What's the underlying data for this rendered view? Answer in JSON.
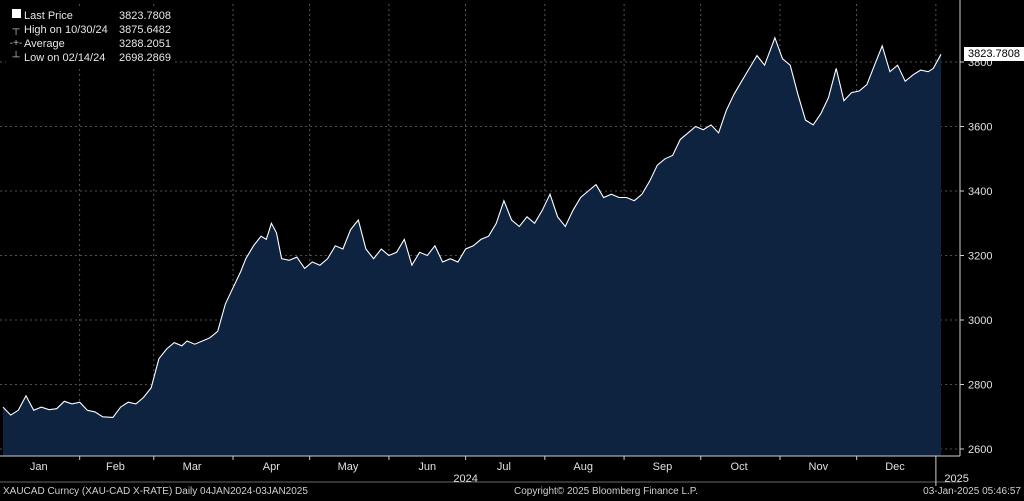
{
  "chart_data": {
    "type": "area",
    "title": "",
    "ylabel": "",
    "ylim": [
      2600,
      4000
    ],
    "yticks": [
      2600,
      2800,
      3000,
      3200,
      3400,
      3600,
      3800
    ],
    "x_range": [
      "2024-01-02",
      "2025-01-03"
    ],
    "month_labels": [
      {
        "label": "Jan",
        "date": "2024-01-16"
      },
      {
        "label": "Feb",
        "date": "2024-02-15"
      },
      {
        "label": "Mar",
        "date": "2024-03-16"
      },
      {
        "label": "Apr",
        "date": "2024-04-16"
      },
      {
        "label": "May",
        "date": "2024-05-16"
      },
      {
        "label": "Jun",
        "date": "2024-06-16"
      },
      {
        "label": "Jul",
        "date": "2024-07-16"
      },
      {
        "label": "Aug",
        "date": "2024-08-16"
      },
      {
        "label": "Sep",
        "date": "2024-09-16"
      },
      {
        "label": "Oct",
        "date": "2024-10-16"
      },
      {
        "label": "Nov",
        "date": "2024-11-16"
      },
      {
        "label": "Dec",
        "date": "2024-12-16"
      }
    ],
    "year_label": {
      "label": "2024",
      "date": "2024-07-01"
    },
    "next_year_label": {
      "label": "2025",
      "date": "2025-01-06"
    },
    "gridlines": [
      "2024-02-01",
      "2024-03-01",
      "2024-04-01",
      "2024-05-01",
      "2024-06-01",
      "2024-07-01",
      "2024-08-01",
      "2024-09-01",
      "2024-10-01",
      "2024-11-01",
      "2024-12-01",
      "2025-01-01"
    ],
    "grid": true,
    "colors": {
      "fill": "#0d2340",
      "line": "#ffffff",
      "grid": "#6a6a6a",
      "background": "#000000"
    },
    "last_price_tag": "3823.7808",
    "series": [
      {
        "name": "Last Price",
        "points": [
          [
            "2024-01-02",
            2730
          ],
          [
            "2024-01-05",
            2705
          ],
          [
            "2024-01-08",
            2720
          ],
          [
            "2024-01-11",
            2765
          ],
          [
            "2024-01-14",
            2720
          ],
          [
            "2024-01-17",
            2730
          ],
          [
            "2024-01-20",
            2722
          ],
          [
            "2024-01-23",
            2725
          ],
          [
            "2024-01-26",
            2748
          ],
          [
            "2024-01-29",
            2740
          ],
          [
            "2024-02-01",
            2745
          ],
          [
            "2024-02-04",
            2720
          ],
          [
            "2024-02-07",
            2715
          ],
          [
            "2024-02-10",
            2700
          ],
          [
            "2024-02-14",
            2698
          ],
          [
            "2024-02-17",
            2730
          ],
          [
            "2024-02-20",
            2745
          ],
          [
            "2024-02-23",
            2740
          ],
          [
            "2024-02-26",
            2760
          ],
          [
            "2024-02-29",
            2790
          ],
          [
            "2024-03-03",
            2880
          ],
          [
            "2024-03-06",
            2910
          ],
          [
            "2024-03-09",
            2930
          ],
          [
            "2024-03-12",
            2920
          ],
          [
            "2024-03-14",
            2935
          ],
          [
            "2024-03-17",
            2925
          ],
          [
            "2024-03-20",
            2935
          ],
          [
            "2024-03-23",
            2945
          ],
          [
            "2024-03-26",
            2965
          ],
          [
            "2024-03-29",
            3050
          ],
          [
            "2024-04-01",
            3100
          ],
          [
            "2024-04-04",
            3150
          ],
          [
            "2024-04-06",
            3190
          ],
          [
            "2024-04-09",
            3230
          ],
          [
            "2024-04-12",
            3260
          ],
          [
            "2024-04-14",
            3250
          ],
          [
            "2024-04-16",
            3300
          ],
          [
            "2024-04-18",
            3270
          ],
          [
            "2024-04-20",
            3190
          ],
          [
            "2024-04-23",
            3185
          ],
          [
            "2024-04-26",
            3195
          ],
          [
            "2024-04-29",
            3160
          ],
          [
            "2024-05-02",
            3180
          ],
          [
            "2024-05-05",
            3170
          ],
          [
            "2024-05-08",
            3190
          ],
          [
            "2024-05-11",
            3230
          ],
          [
            "2024-05-14",
            3220
          ],
          [
            "2024-05-17",
            3280
          ],
          [
            "2024-05-20",
            3310
          ],
          [
            "2024-05-23",
            3220
          ],
          [
            "2024-05-26",
            3190
          ],
          [
            "2024-05-29",
            3220
          ],
          [
            "2024-06-01",
            3200
          ],
          [
            "2024-06-04",
            3210
          ],
          [
            "2024-06-07",
            3250
          ],
          [
            "2024-06-10",
            3170
          ],
          [
            "2024-06-13",
            3210
          ],
          [
            "2024-06-16",
            3200
          ],
          [
            "2024-06-19",
            3230
          ],
          [
            "2024-06-22",
            3180
          ],
          [
            "2024-06-25",
            3190
          ],
          [
            "2024-06-28",
            3180
          ],
          [
            "2024-07-01",
            3220
          ],
          [
            "2024-07-04",
            3230
          ],
          [
            "2024-07-07",
            3250
          ],
          [
            "2024-07-10",
            3260
          ],
          [
            "2024-07-13",
            3300
          ],
          [
            "2024-07-16",
            3370
          ],
          [
            "2024-07-19",
            3310
          ],
          [
            "2024-07-22",
            3290
          ],
          [
            "2024-07-25",
            3320
          ],
          [
            "2024-07-28",
            3300
          ],
          [
            "2024-07-31",
            3340
          ],
          [
            "2024-08-03",
            3390
          ],
          [
            "2024-08-06",
            3320
          ],
          [
            "2024-08-09",
            3290
          ],
          [
            "2024-08-12",
            3340
          ],
          [
            "2024-08-15",
            3380
          ],
          [
            "2024-08-18",
            3400
          ],
          [
            "2024-08-21",
            3420
          ],
          [
            "2024-08-24",
            3380
          ],
          [
            "2024-08-27",
            3390
          ],
          [
            "2024-08-30",
            3380
          ],
          [
            "2024-09-02",
            3380
          ],
          [
            "2024-09-05",
            3370
          ],
          [
            "2024-09-08",
            3390
          ],
          [
            "2024-09-11",
            3430
          ],
          [
            "2024-09-14",
            3480
          ],
          [
            "2024-09-17",
            3500
          ],
          [
            "2024-09-20",
            3510
          ],
          [
            "2024-09-23",
            3560
          ],
          [
            "2024-09-26",
            3580
          ],
          [
            "2024-09-29",
            3600
          ],
          [
            "2024-10-02",
            3590
          ],
          [
            "2024-10-05",
            3605
          ],
          [
            "2024-10-08",
            3580
          ],
          [
            "2024-10-11",
            3650
          ],
          [
            "2024-10-14",
            3700
          ],
          [
            "2024-10-17",
            3740
          ],
          [
            "2024-10-20",
            3780
          ],
          [
            "2024-10-23",
            3820
          ],
          [
            "2024-10-26",
            3790
          ],
          [
            "2024-10-30",
            3875
          ],
          [
            "2024-11-02",
            3810
          ],
          [
            "2024-11-05",
            3790
          ],
          [
            "2024-11-08",
            3700
          ],
          [
            "2024-11-11",
            3620
          ],
          [
            "2024-11-14",
            3605
          ],
          [
            "2024-11-17",
            3640
          ],
          [
            "2024-11-20",
            3690
          ],
          [
            "2024-11-23",
            3780
          ],
          [
            "2024-11-26",
            3680
          ],
          [
            "2024-11-29",
            3705
          ],
          [
            "2024-12-02",
            3710
          ],
          [
            "2024-12-05",
            3730
          ],
          [
            "2024-12-08",
            3790
          ],
          [
            "2024-12-11",
            3850
          ],
          [
            "2024-12-14",
            3770
          ],
          [
            "2024-12-17",
            3790
          ],
          [
            "2024-12-20",
            3740
          ],
          [
            "2024-12-23",
            3760
          ],
          [
            "2024-12-26",
            3775
          ],
          [
            "2024-12-29",
            3770
          ],
          [
            "2024-12-31",
            3780
          ],
          [
            "2025-01-03",
            3824
          ]
        ]
      }
    ],
    "legend": [
      {
        "symbol": "box",
        "label": "Last Price",
        "value": "3823.7808"
      },
      {
        "symbol": "high",
        "label": "High on 10/30/24",
        "value": "3875.6482"
      },
      {
        "symbol": "avg",
        "label": "Average",
        "value": "3288.2051"
      },
      {
        "symbol": "low",
        "label": "Low on 02/14/24",
        "value": "2698.2869"
      }
    ]
  },
  "footer": {
    "left": "XAUCAD Curncy (XAU-CAD X-RATE)  Daily 04JAN2024-03JAN2025",
    "center": "Copyright© 2025 Bloomberg Finance L.P.",
    "right": "03-Jan-2025 05:46:57"
  }
}
